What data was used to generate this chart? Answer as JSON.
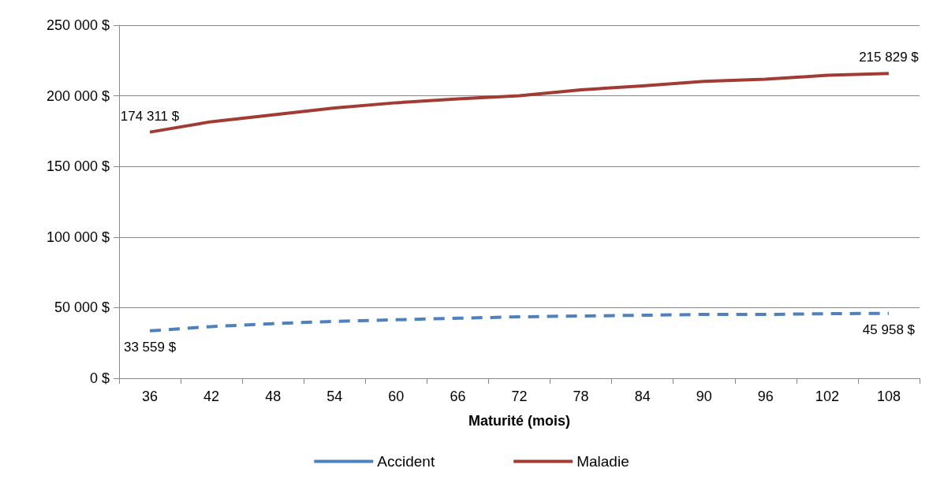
{
  "chart_data": {
    "type": "line",
    "xlabel": "Maturité (mois)",
    "categories": [
      "36",
      "42",
      "48",
      "54",
      "60",
      "66",
      "72",
      "78",
      "84",
      "90",
      "96",
      "102",
      "108"
    ],
    "series": [
      {
        "name": "Accident",
        "color": "#4f81bd",
        "line_style": "dashed",
        "values": [
          33559,
          36600,
          38700,
          40300,
          41400,
          42500,
          43500,
          44100,
          44600,
          45200,
          45200,
          45700,
          45958
        ],
        "value_labels": [
          "33 559 $",
          null,
          null,
          null,
          null,
          null,
          null,
          null,
          null,
          null,
          null,
          null,
          "45 958 $"
        ]
      },
      {
        "name": "Maladie",
        "color": "#a33b35",
        "line_style": "solid",
        "values": [
          174311,
          181700,
          186500,
          191400,
          195100,
          197800,
          200000,
          204300,
          207000,
          210200,
          211800,
          214500,
          215829
        ],
        "value_labels": [
          "174 311 $",
          null,
          null,
          null,
          null,
          null,
          null,
          null,
          null,
          null,
          null,
          null,
          "215 829 $"
        ]
      }
    ],
    "ylim": [
      0,
      250000
    ],
    "yticks": [
      {
        "value": 0,
        "label": "0 $"
      },
      {
        "value": 50000,
        "label": "50 000 $"
      },
      {
        "value": 100000,
        "label": "100 000 $"
      },
      {
        "value": 150000,
        "label": "150 000 $"
      },
      {
        "value": 200000,
        "label": "200 000 $"
      },
      {
        "value": 250000,
        "label": "250 000 $"
      }
    ],
    "grid": "y",
    "legend": "bottom",
    "marker": "none"
  }
}
